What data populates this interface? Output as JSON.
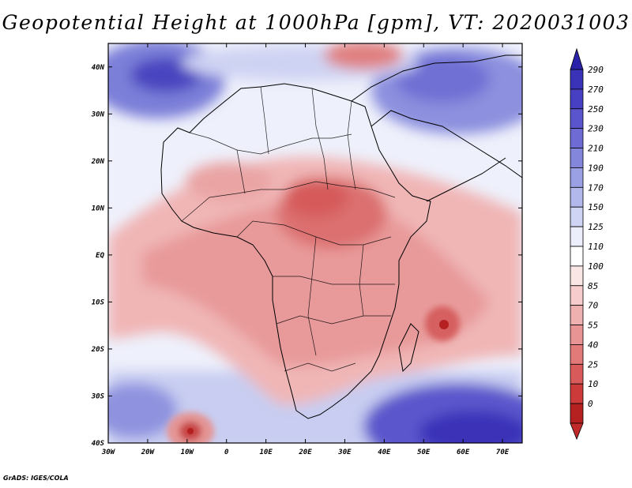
{
  "title": "Geopotential Height at 1000hPa [gpm], VT: 2020031003",
  "footer": "GrADS: IGES/COLA",
  "map": {
    "lon_range": [
      -30,
      75
    ],
    "lat_range": [
      -40,
      45
    ],
    "lat_labels": [
      "40N",
      "30N",
      "20N",
      "10N",
      "EQ",
      "10S",
      "20S",
      "30S",
      "40S"
    ],
    "lat_values": [
      40,
      30,
      20,
      10,
      0,
      -10,
      -20,
      -30,
      -40
    ],
    "lon_labels": [
      "30W",
      "20W",
      "10W",
      "0",
      "10E",
      "20E",
      "30E",
      "40E",
      "50E",
      "60E",
      "70E"
    ],
    "lon_values": [
      -30,
      -20,
      -10,
      0,
      10,
      20,
      30,
      40,
      50,
      60,
      70
    ]
  },
  "colorbar": {
    "levels": [
      "290",
      "270",
      "250",
      "230",
      "210",
      "190",
      "170",
      "150",
      "125",
      "110",
      "100",
      "85",
      "70",
      "55",
      "40",
      "25",
      "10",
      "0"
    ],
    "colors": [
      "#3a33b8",
      "#4840c2",
      "#5a55cc",
      "#6e6cd4",
      "#8486dc",
      "#9ba0e4",
      "#b3b8ec",
      "#cfd4f4",
      "#eceefb",
      "#ffffff",
      "#fbe6e6",
      "#f6cccc",
      "#efb0b0",
      "#e89494",
      "#e27a7a",
      "#d95a5a",
      "#cc3a3a",
      "#b52020"
    ]
  }
}
